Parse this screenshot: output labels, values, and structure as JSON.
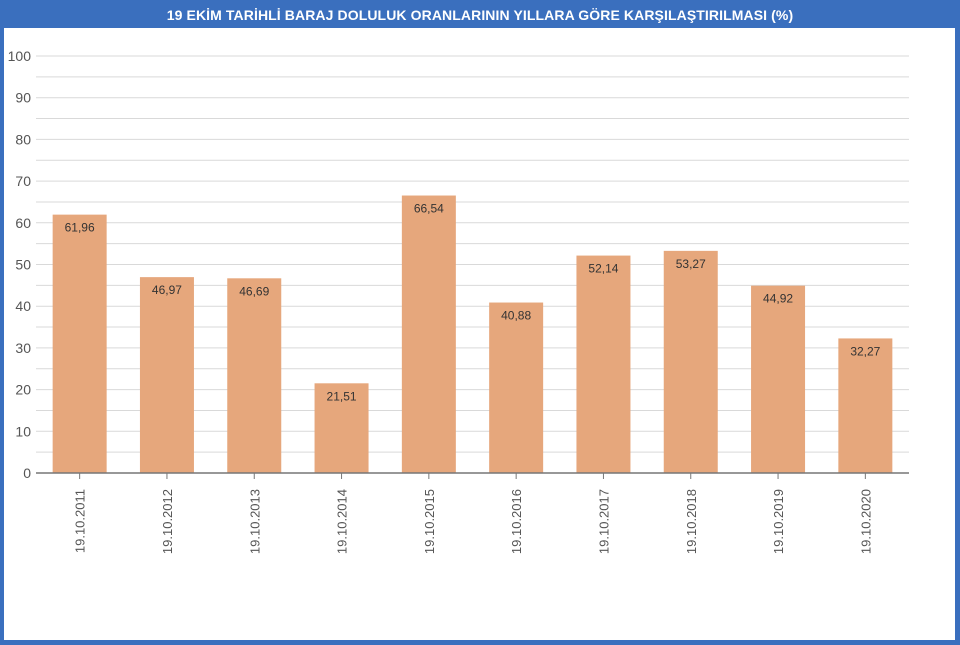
{
  "title": "19 EKİM TARİHLİ BARAJ DOLULUK ORANLARININ YILLARA GÖRE KARŞILAŞTIRILMASI (%)",
  "colors": {
    "frame": "#3a6fbe",
    "bar": "#e6a77c",
    "grid": "#d9d9d9",
    "axis": "#777777"
  },
  "chart_data": {
    "type": "bar",
    "title": "19 EKİM TARİHLİ BARAJ DOLULUK ORANLARININ YILLARA GÖRE KARŞILAŞTIRILMASI (%)",
    "xlabel": "",
    "ylabel": "",
    "ylim": [
      0,
      100
    ],
    "yticks": [
      0,
      10,
      20,
      30,
      40,
      50,
      60,
      70,
      80,
      90,
      100
    ],
    "categories": [
      "19.10.2011",
      "19.10.2012",
      "19.10.2013",
      "19.10.2014",
      "19.10.2015",
      "19.10.2016",
      "19.10.2017",
      "19.10.2018",
      "19.10.2019",
      "19.10.2020"
    ],
    "values": [
      61.96,
      46.97,
      46.69,
      21.51,
      66.54,
      40.88,
      52.14,
      53.27,
      44.92,
      32.27
    ],
    "value_labels": [
      "61,96",
      "46,97",
      "46,69",
      "21,51",
      "66,54",
      "40,88",
      "52,14",
      "53,27",
      "44,92",
      "32,27"
    ],
    "grid": true,
    "legend": "none"
  }
}
